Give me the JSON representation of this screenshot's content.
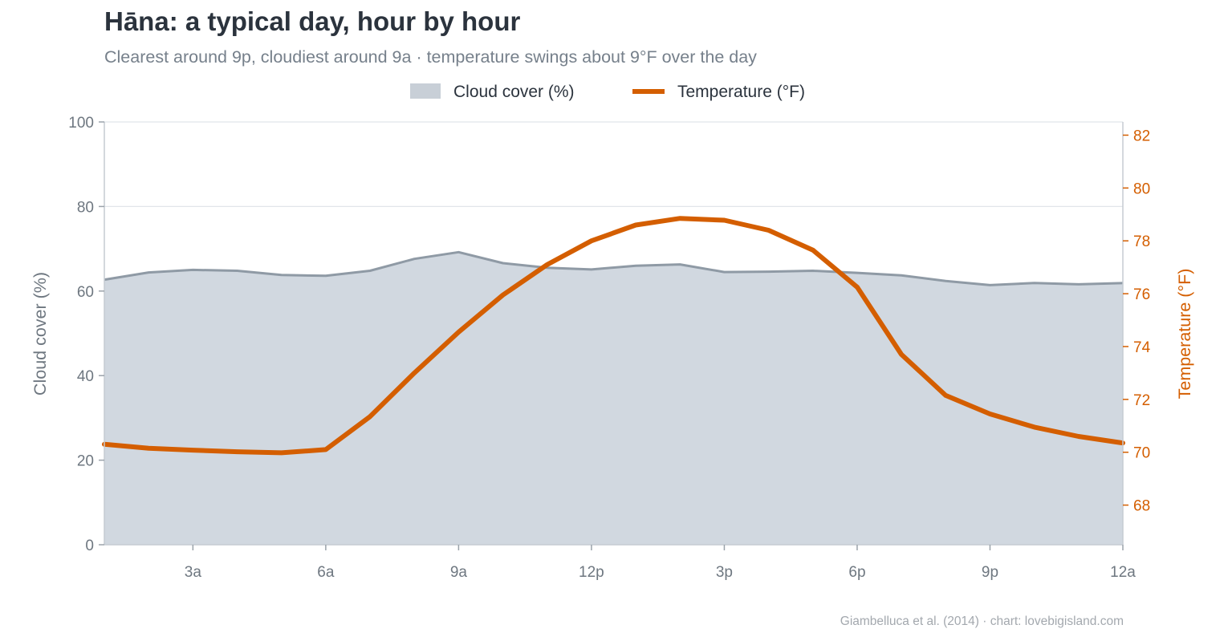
{
  "header": {
    "title": "Hāna: a typical day, hour by hour",
    "subtitle": "Clearest around 9p, cloudiest around 9a  ·  temperature swings about 9°F over the day"
  },
  "footer": {
    "credit": "Giambelluca et al. (2014) · chart: lovebigisland.com"
  },
  "colors": {
    "cloud_fill": "#d1d8e0",
    "cloud_line": "#8f9aa5",
    "legend_swatch": "#c8cfd7",
    "temperature": "#d45e00",
    "axis_text": "#6e7780",
    "grid": "#e1e5ea"
  },
  "chart_data": {
    "type": "area",
    "legend_position": "top-center",
    "grid": true,
    "legend": {
      "cloud_label": "Cloud cover (%)",
      "temp_label": "Temperature (°F)"
    },
    "x": [
      1,
      2,
      3,
      4,
      5,
      6,
      7,
      8,
      9,
      10,
      11,
      12,
      13,
      14,
      15,
      16,
      17,
      18,
      19,
      20,
      21,
      22,
      23,
      24
    ],
    "xlim": [
      1,
      24
    ],
    "x_ticks": [
      {
        "value": 3,
        "label": "3a"
      },
      {
        "value": 6,
        "label": "6a"
      },
      {
        "value": 9,
        "label": "9a"
      },
      {
        "value": 12,
        "label": "12p"
      },
      {
        "value": 15,
        "label": "3p"
      },
      {
        "value": 18,
        "label": "6p"
      },
      {
        "value": 21,
        "label": "9p"
      },
      {
        "value": 24,
        "label": "12a"
      }
    ],
    "y_left": {
      "label": "Cloud cover  (%)",
      "lim": [
        0,
        100
      ],
      "ticks": [
        0,
        20,
        40,
        60,
        80,
        100
      ]
    },
    "y_right": {
      "label": "Temperature  (°F)",
      "lim": [
        66.5,
        82.5
      ],
      "ticks": [
        68,
        70,
        72,
        74,
        76,
        78,
        80,
        82
      ]
    },
    "series": [
      {
        "name": "Cloud cover (%)",
        "type": "area",
        "axis": "left",
        "values": [
          62.7,
          64.4,
          65.0,
          64.8,
          63.8,
          63.6,
          64.8,
          67.6,
          69.2,
          66.6,
          65.5,
          65.1,
          66.0,
          66.3,
          64.5,
          64.6,
          64.8,
          64.3,
          63.7,
          62.4,
          61.4,
          61.9,
          61.6,
          61.9
        ]
      },
      {
        "name": "Temperature (°F)",
        "type": "line",
        "axis": "right",
        "values": [
          70.3,
          70.15,
          70.08,
          70.02,
          69.98,
          70.1,
          71.35,
          73.0,
          74.55,
          75.95,
          77.1,
          78.0,
          78.6,
          78.85,
          78.78,
          78.4,
          77.65,
          76.25,
          73.7,
          72.15,
          71.45,
          70.95,
          70.6,
          70.35
        ]
      }
    ]
  }
}
